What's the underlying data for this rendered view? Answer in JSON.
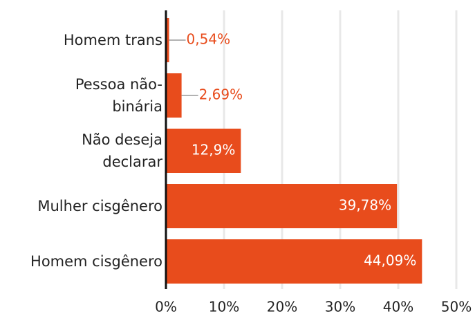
{
  "chart_data": {
    "type": "bar",
    "orientation": "horizontal",
    "categories": [
      "Homem trans",
      "Pessoa não-\nbinária",
      "Não deseja\ndeclarar",
      "Mulher cisgênero",
      "Homem cisgênero"
    ],
    "values": [
      0.54,
      2.69,
      12.9,
      39.78,
      44.09
    ],
    "value_labels": [
      "0,54%",
      "2,69%",
      "12,9%",
      "39,78%",
      "44,09%"
    ],
    "color": "#e84c1c",
    "xlim": [
      0,
      50
    ],
    "xticks": [
      {
        "value": 0,
        "label": "0%"
      },
      {
        "value": 10,
        "label": "10%"
      },
      {
        "value": 20,
        "label": "20%"
      },
      {
        "value": 30,
        "label": "30%"
      },
      {
        "value": 40,
        "label": "40%"
      },
      {
        "value": 50,
        "label": "50%"
      }
    ],
    "grid": true
  }
}
